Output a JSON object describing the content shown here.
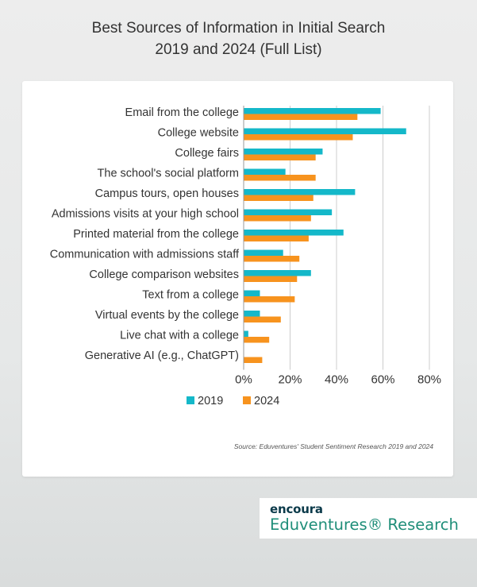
{
  "page": {
    "title_line1": "Best Sources of Information in Initial Search",
    "title_line2": "2019 and 2024 (Full List)",
    "source": "Source: Eduventures' Student Sentiment Research 2019 and 2024"
  },
  "brand": {
    "top": "encoura",
    "bottom": "Eduventures® Research"
  },
  "colors": {
    "series_2019": "#14b8c9",
    "series_2024": "#f7931e",
    "gridline": "#cccccc",
    "axis_text": "#333333"
  },
  "chart_data": {
    "type": "bar",
    "orientation": "horizontal",
    "title": "Best Sources of Information in Initial Search 2019 and 2024 (Full List)",
    "categories": [
      "Email from the college",
      "College website",
      "College fairs",
      "The school's social platform",
      "Campus tours, open houses",
      "Admissions visits at your high school",
      "Printed material from the college",
      "Communication with admissions staff",
      "College comparison websites",
      "Text from a college",
      "Virtual events by the college",
      "Live chat with a college",
      "Generative AI (e.g., ChatGPT)"
    ],
    "series": [
      {
        "name": "2019",
        "values": [
          59,
          70,
          34,
          18,
          48,
          38,
          43,
          17,
          29,
          7,
          7,
          2,
          0
        ]
      },
      {
        "name": "2024",
        "values": [
          49,
          47,
          31,
          31,
          30,
          29,
          28,
          24,
          23,
          22,
          16,
          11,
          8
        ]
      }
    ],
    "xlim": [
      0,
      80
    ],
    "xticks": [
      "0%",
      "20%",
      "40%",
      "60%",
      "80%"
    ],
    "grid": true,
    "legend": "bottom"
  }
}
